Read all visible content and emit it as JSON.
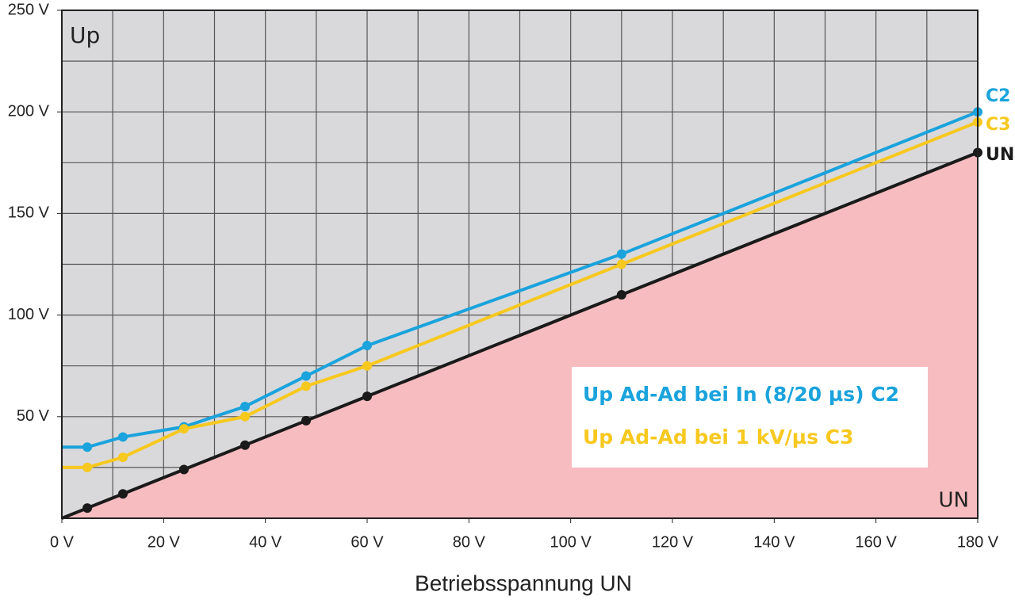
{
  "chart_data": {
    "type": "line",
    "y_label": "Up",
    "x_label": "Betriebsspannung UN",
    "corner_label": "UN",
    "x": [
      0,
      5,
      12,
      24,
      36,
      48,
      60,
      110,
      180
    ],
    "series": [
      {
        "name": "Up Ad-Ad bei In (8/20 µs) C2",
        "end_label": "C2",
        "color": "#1aa3dc",
        "values": [
          35,
          35,
          40,
          45,
          55,
          70,
          85,
          130,
          200
        ]
      },
      {
        "name": "Up Ad-Ad bei 1 kV/µs C3",
        "end_label": "C3",
        "color": "#f7c81e",
        "values": [
          25,
          25,
          30,
          44,
          50,
          65,
          75,
          125,
          195
        ]
      },
      {
        "end_label": "UN",
        "color": "#1a1a1a",
        "fill": "#f7bcc0",
        "values": [
          0,
          5,
          12,
          24,
          36,
          48,
          60,
          110,
          180
        ]
      }
    ],
    "xlim": [
      0,
      180
    ],
    "ylim": [
      0,
      250
    ],
    "xticks": [
      {
        "value": 0,
        "label": "0 V"
      },
      {
        "value": 20,
        "label": "20 V"
      },
      {
        "value": 40,
        "label": "40 V"
      },
      {
        "value": 60,
        "label": "60 V"
      },
      {
        "value": 80,
        "label": "80 V"
      },
      {
        "value": 100,
        "label": "100 V"
      },
      {
        "value": 120,
        "label": "120 V"
      },
      {
        "value": 140,
        "label": "140 V"
      },
      {
        "value": 160,
        "label": "160 V"
      },
      {
        "value": 180,
        "label": "180 V"
      }
    ],
    "yticks": [
      {
        "value": 50,
        "label": "50 V"
      },
      {
        "value": 100,
        "label": "100 V"
      },
      {
        "value": 150,
        "label": "150 V"
      },
      {
        "value": 200,
        "label": "200 V"
      },
      {
        "value": 250,
        "label": "250 V"
      }
    ],
    "xgrid": [
      10,
      20,
      30,
      40,
      50,
      60,
      70,
      80,
      90,
      100,
      110,
      120,
      130,
      140,
      150,
      160,
      170
    ],
    "ygrid": [
      25,
      50,
      75,
      100,
      125,
      150,
      175,
      200,
      225
    ],
    "grid": true
  }
}
